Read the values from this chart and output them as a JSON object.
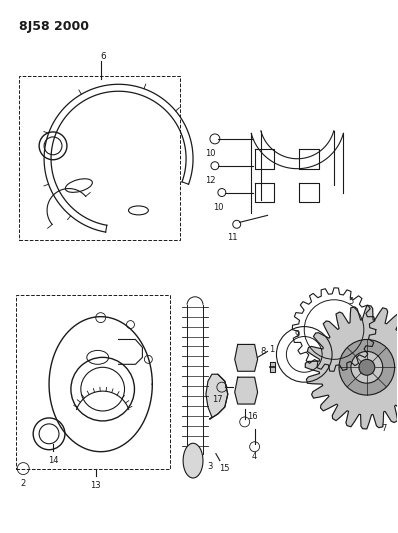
{
  "title": "8J58 2000",
  "bg_color": "#ffffff",
  "line_color": "#1a1a1a",
  "fig_width": 3.98,
  "fig_height": 5.33,
  "dpi": 100
}
